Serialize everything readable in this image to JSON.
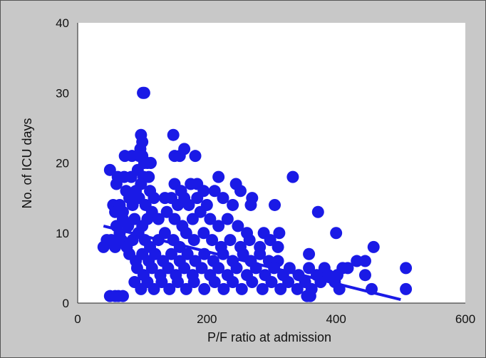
{
  "chart_data": {
    "type": "scatter",
    "title": "",
    "xlabel": "P/F ratio at admission",
    "ylabel": "No. of ICU days",
    "xlim": [
      0,
      600
    ],
    "ylim": [
      0,
      40
    ],
    "xticks": [
      "0",
      "200",
      "400",
      "600"
    ],
    "yticks": [
      "0",
      "10",
      "20",
      "30",
      "40"
    ],
    "grid": false,
    "legend": "none",
    "colors": {
      "points": "#1a1ae6",
      "trendline": "#1a1ae6",
      "plot_background": "#ffffff",
      "frame_background": "#c8c8c8"
    },
    "trendline": {
      "x": [
        40,
        500
      ],
      "y": [
        11,
        0.5
      ]
    },
    "points": [
      [
        101,
        30
      ],
      [
        103,
        30
      ],
      [
        98,
        24
      ],
      [
        100,
        23
      ],
      [
        148,
        24
      ],
      [
        97,
        22
      ],
      [
        100,
        21
      ],
      [
        103,
        20
      ],
      [
        108,
        20
      ],
      [
        113,
        20
      ],
      [
        95,
        21
      ],
      [
        73,
        21
      ],
      [
        84,
        21
      ],
      [
        150,
        21
      ],
      [
        158,
        21
      ],
      [
        165,
        22
      ],
      [
        182,
        21
      ],
      [
        50,
        19
      ],
      [
        62,
        18
      ],
      [
        72,
        18
      ],
      [
        83,
        18
      ],
      [
        93,
        19
      ],
      [
        102,
        18
      ],
      [
        110,
        18
      ],
      [
        60,
        17
      ],
      [
        75,
        16
      ],
      [
        90,
        16
      ],
      [
        98,
        17
      ],
      [
        150,
        17
      ],
      [
        160,
        16
      ],
      [
        175,
        17
      ],
      [
        185,
        17
      ],
      [
        195,
        16
      ],
      [
        218,
        18
      ],
      [
        245,
        17
      ],
      [
        252,
        16
      ],
      [
        270,
        15
      ],
      [
        333,
        18
      ],
      [
        55,
        14
      ],
      [
        58,
        13
      ],
      [
        65,
        14
      ],
      [
        70,
        13
      ],
      [
        80,
        15
      ],
      [
        85,
        14
      ],
      [
        95,
        15
      ],
      [
        105,
        14
      ],
      [
        112,
        16
      ],
      [
        118,
        15
      ],
      [
        135,
        15
      ],
      [
        145,
        15
      ],
      [
        155,
        14
      ],
      [
        165,
        15
      ],
      [
        172,
        14
      ],
      [
        185,
        15
      ],
      [
        200,
        14
      ],
      [
        212,
        16
      ],
      [
        225,
        15
      ],
      [
        240,
        14
      ],
      [
        268,
        14
      ],
      [
        305,
        14
      ],
      [
        372,
        13
      ],
      [
        60,
        11
      ],
      [
        65,
        10
      ],
      [
        70,
        12
      ],
      [
        78,
        11
      ],
      [
        88,
        12
      ],
      [
        100,
        11
      ],
      [
        108,
        12
      ],
      [
        115,
        13
      ],
      [
        125,
        12
      ],
      [
        138,
        13
      ],
      [
        150,
        12
      ],
      [
        162,
        11
      ],
      [
        178,
        12
      ],
      [
        190,
        13
      ],
      [
        205,
        12
      ],
      [
        218,
        11
      ],
      [
        232,
        12
      ],
      [
        248,
        11
      ],
      [
        262,
        10
      ],
      [
        288,
        10
      ],
      [
        312,
        10
      ],
      [
        400,
        10
      ],
      [
        40,
        8
      ],
      [
        45,
        9
      ],
      [
        52,
        9
      ],
      [
        58,
        8
      ],
      [
        68,
        9
      ],
      [
        76,
        8
      ],
      [
        85,
        9
      ],
      [
        94,
        10
      ],
      [
        104,
        9
      ],
      [
        112,
        8
      ],
      [
        125,
        9
      ],
      [
        135,
        10
      ],
      [
        148,
        9
      ],
      [
        158,
        8
      ],
      [
        168,
        10
      ],
      [
        180,
        9
      ],
      [
        195,
        10
      ],
      [
        208,
        9
      ],
      [
        222,
        8
      ],
      [
        236,
        9
      ],
      [
        252,
        8
      ],
      [
        266,
        9
      ],
      [
        282,
        8
      ],
      [
        298,
        9
      ],
      [
        310,
        8
      ],
      [
        458,
        8
      ],
      [
        80,
        7
      ],
      [
        90,
        6
      ],
      [
        100,
        7
      ],
      [
        110,
        6
      ],
      [
        120,
        7
      ],
      [
        132,
        6
      ],
      [
        145,
        7
      ],
      [
        158,
        6
      ],
      [
        170,
        7
      ],
      [
        182,
        6
      ],
      [
        196,
        7
      ],
      [
        210,
        6
      ],
      [
        225,
        7
      ],
      [
        240,
        6
      ],
      [
        256,
        7
      ],
      [
        268,
        6
      ],
      [
        282,
        7
      ],
      [
        296,
        6
      ],
      [
        310,
        6
      ],
      [
        328,
        5
      ],
      [
        358,
        7
      ],
      [
        382,
        5
      ],
      [
        410,
        5
      ],
      [
        418,
        5
      ],
      [
        432,
        6
      ],
      [
        445,
        6
      ],
      [
        92,
        5
      ],
      [
        102,
        4
      ],
      [
        115,
        5
      ],
      [
        128,
        4
      ],
      [
        140,
        5
      ],
      [
        152,
        4
      ],
      [
        165,
        5
      ],
      [
        178,
        4
      ],
      [
        192,
        5
      ],
      [
        205,
        4
      ],
      [
        218,
        5
      ],
      [
        232,
        4
      ],
      [
        246,
        5
      ],
      [
        262,
        4
      ],
      [
        276,
        5
      ],
      [
        290,
        4
      ],
      [
        304,
        5
      ],
      [
        318,
        4
      ],
      [
        342,
        4
      ],
      [
        358,
        5
      ],
      [
        370,
        4
      ],
      [
        388,
        4
      ],
      [
        402,
        4
      ],
      [
        445,
        4
      ],
      [
        88,
        3
      ],
      [
        98,
        2
      ],
      [
        108,
        3
      ],
      [
        118,
        2
      ],
      [
        130,
        3
      ],
      [
        142,
        2
      ],
      [
        155,
        3
      ],
      [
        168,
        2
      ],
      [
        180,
        3
      ],
      [
        196,
        2
      ],
      [
        212,
        3
      ],
      [
        226,
        2
      ],
      [
        240,
        3
      ],
      [
        254,
        2
      ],
      [
        270,
        3
      ],
      [
        286,
        2
      ],
      [
        300,
        3
      ],
      [
        314,
        2
      ],
      [
        326,
        3
      ],
      [
        340,
        2
      ],
      [
        352,
        3
      ],
      [
        362,
        2
      ],
      [
        376,
        3
      ],
      [
        398,
        3
      ],
      [
        405,
        2
      ],
      [
        455,
        2
      ],
      [
        508,
        2
      ],
      [
        508,
        5
      ],
      [
        50,
        1
      ],
      [
        58,
        1
      ],
      [
        63,
        1
      ],
      [
        70,
        1
      ],
      [
        355,
        1
      ],
      [
        360,
        1
      ]
    ]
  }
}
